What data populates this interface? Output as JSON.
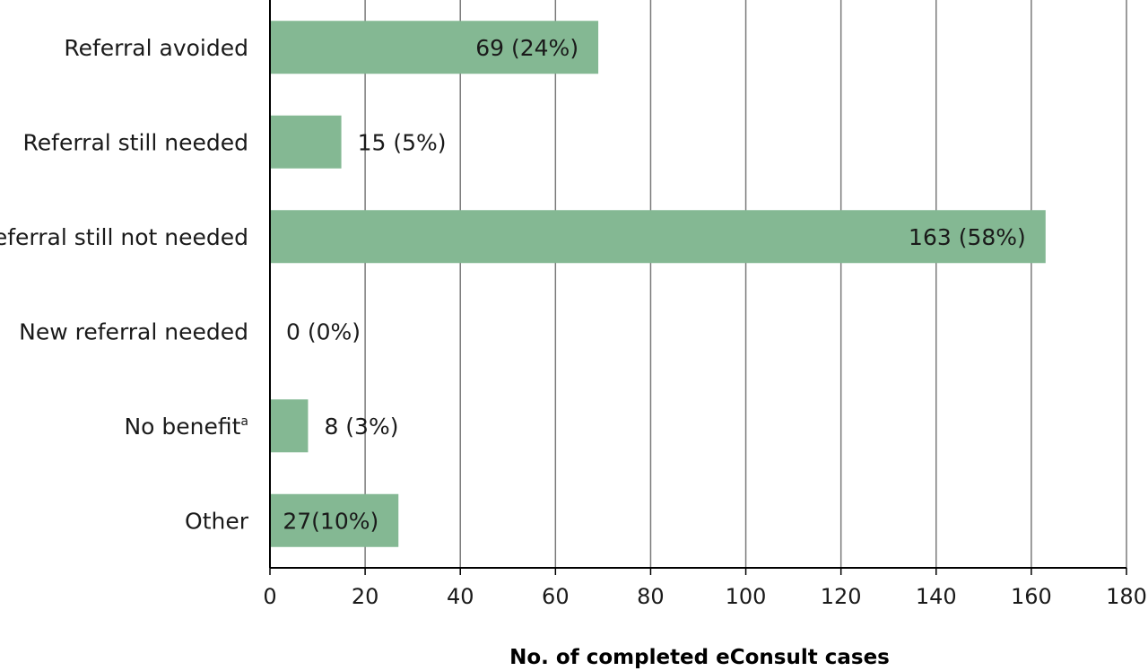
{
  "chart_data": {
    "type": "bar",
    "orientation": "horizontal",
    "title": "",
    "xlabel": "No. of completed eConsult cases",
    "ylabel": "",
    "xlim": [
      0,
      180
    ],
    "xticks": [
      0,
      20,
      40,
      60,
      80,
      100,
      120,
      140,
      160,
      180
    ],
    "grid": "vertical",
    "bar_color": "#84b893",
    "categories": [
      "Referral avoided",
      "Referral still needed",
      "Referral still not needed",
      "New referral needed",
      "No benefit",
      "Other"
    ],
    "category_superscripts": [
      "",
      "",
      "",
      "",
      "a",
      ""
    ],
    "values": [
      69,
      15,
      163,
      0,
      8,
      27
    ],
    "data_labels": [
      "69 (24%)",
      "15 (5%)",
      "163 (58%)",
      "0 (0%)",
      "8 (3%)",
      "27(10%)"
    ]
  }
}
